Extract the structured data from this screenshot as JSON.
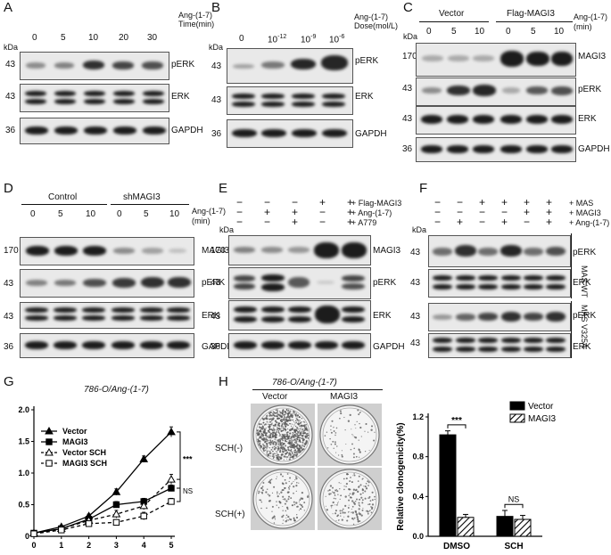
{
  "colors": {
    "band": "#1c1c1c",
    "membrane": "#e9e9e9",
    "bar_black": "#000000"
  },
  "kda": "kDa",
  "A": {
    "label": "A",
    "treatment": "Ang-(1-7)",
    "treatment_sub": "Time(min)",
    "lanes": [
      "0",
      "5",
      "10",
      "20",
      "30"
    ],
    "markers": [
      "43",
      "43",
      "36"
    ],
    "proteins": [
      "pERK",
      "ERK",
      "GAPDH"
    ]
  },
  "B": {
    "label": "B",
    "treatment": "Ang-(1-7)",
    "treatment_sub": "Dose(mol/L)",
    "lanes": [
      "0",
      "10",
      "10",
      "10"
    ],
    "lane_exps": [
      "",
      "-12",
      "-9",
      "-6"
    ],
    "markers": [
      "43",
      "43",
      "36"
    ],
    "proteins": [
      "pERK",
      "ERK",
      "GAPDH"
    ]
  },
  "C": {
    "label": "C",
    "groups": [
      "Vector",
      "Flag-MAGI3"
    ],
    "treatment": "Ang-(1-7)",
    "treatment_sub": "(min)",
    "lanes": [
      "0",
      "5",
      "10",
      "0",
      "5",
      "10"
    ],
    "markers": [
      "170",
      "43",
      "43",
      "36"
    ],
    "proteins": [
      "MAGI3",
      "pERK",
      "ERK",
      "GAPDH"
    ]
  },
  "D": {
    "label": "D",
    "groups": [
      "Control",
      "shMAGI3"
    ],
    "treatment": "Ang-(1-7)",
    "treatment_sub": "(min)",
    "lanes": [
      "0",
      "5",
      "10",
      "0",
      "5",
      "10"
    ],
    "markers": [
      "170",
      "43",
      "43",
      "36"
    ],
    "proteins": [
      "MAGI3",
      "pERK",
      "ERK",
      "GAPDH"
    ]
  },
  "E": {
    "label": "E",
    "row_labels": [
      "Flag-MAGI3",
      "Ang-(1-7)",
      "A779"
    ],
    "signs": [
      [
        "−",
        "−",
        "−",
        "+",
        "+"
      ],
      [
        "−",
        "+",
        "+",
        "−",
        "+"
      ],
      [
        "−",
        "−",
        "+",
        "−",
        "+"
      ]
    ],
    "markers": [
      "170",
      "43",
      "43",
      "36"
    ],
    "proteins": [
      "MAGI3",
      "pERK",
      "ERK",
      "GAPDH"
    ]
  },
  "F": {
    "label": "F",
    "row_labels": [
      "MAS",
      "MAGI3",
      "Ang-(1-7)"
    ],
    "signs": [
      [
        "−",
        "−",
        "+",
        "+",
        "+",
        "+"
      ],
      [
        "−",
        "−",
        "−",
        "−",
        "+",
        "+"
      ],
      [
        "−",
        "+",
        "−",
        "+",
        "−",
        "+"
      ]
    ],
    "markers": [
      "43",
      "43",
      "43"
    ],
    "marker_4": "43",
    "proteins": [
      "pERK",
      "ERK",
      "pERK",
      "ERK"
    ],
    "side_labels": [
      "MAS WT",
      "MAS V325A"
    ]
  },
  "G": {
    "label": "G",
    "title": "786-O/Ang-(1-7)",
    "sig_1": "***",
    "sig_2": "NS",
    "chart_data": {
      "type": "line",
      "title": "786-O/Ang-(1-7)",
      "x": [
        0,
        1,
        2,
        3,
        4,
        5
      ],
      "ylim": [
        0,
        2.0
      ],
      "yticks": [
        "0",
        "0.5",
        "1.0",
        "1.5",
        "2.0"
      ],
      "xticks": [
        "0",
        "1",
        "2",
        "3",
        "4",
        "5"
      ],
      "legend_position": "top-left",
      "series": [
        {
          "name": "Vector",
          "values": [
            0.05,
            0.15,
            0.32,
            0.7,
            1.22,
            1.65
          ],
          "err": [
            0.01,
            0.02,
            0.03,
            0.05,
            0.05,
            0.08
          ],
          "marker": "triangle-filled",
          "dash": false
        },
        {
          "name": "MAGI3",
          "values": [
            0.05,
            0.12,
            0.27,
            0.5,
            0.55,
            0.76
          ],
          "err": [
            0.01,
            0.02,
            0.03,
            0.05,
            0.05,
            0.05
          ],
          "marker": "square-filled",
          "dash": false
        },
        {
          "name": "Vector SCH",
          "values": [
            0.05,
            0.12,
            0.25,
            0.35,
            0.48,
            0.9
          ],
          "err": [
            0.01,
            0.02,
            0.03,
            0.06,
            0.06,
            0.08
          ],
          "marker": "triangle-open",
          "dash": true
        },
        {
          "name": "MAGI3 SCH",
          "values": [
            0.04,
            0.1,
            0.2,
            0.22,
            0.32,
            0.55
          ],
          "err": [
            0.01,
            0.02,
            0.03,
            0.03,
            0.06,
            0.05
          ],
          "marker": "square-open",
          "dash": true
        }
      ]
    }
  },
  "H": {
    "label": "H",
    "title": "786-O/Ang-(1-7)",
    "cols": [
      "Vector",
      "MAGI3"
    ],
    "rows": [
      "SCH(-)",
      "SCH(+)"
    ],
    "sig_1": "***",
    "sig_2": "NS",
    "chart_data": {
      "type": "bar",
      "ylabel": "Relative clonogenicity(%)",
      "categories": [
        "DMSO",
        "SCH"
      ],
      "ylim": [
        0,
        1.2
      ],
      "yticks": [
        "0.0",
        "0.4",
        "0.8",
        "1.2"
      ],
      "legend_position": "top-right",
      "series": [
        {
          "name": "Vector",
          "values": [
            1.02,
            0.2
          ],
          "err": [
            0.04,
            0.06
          ],
          "fill": "solid-black"
        },
        {
          "name": "MAGI3",
          "values": [
            0.19,
            0.17
          ],
          "err": [
            0.03,
            0.04
          ],
          "fill": "hatched"
        }
      ]
    }
  }
}
